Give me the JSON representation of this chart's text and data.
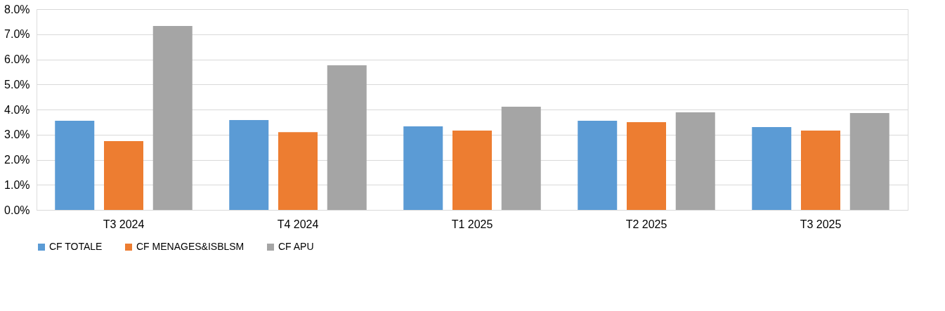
{
  "chart_data": {
    "type": "bar",
    "categories": [
      "T3 2024",
      "T4 2024",
      "T1 2025",
      "T2 2025",
      "T3 2025"
    ],
    "series": [
      {
        "name": "CF TOTALE",
        "color": "#5b9bd5",
        "values": [
          3.55,
          3.58,
          3.33,
          3.55,
          3.3
        ]
      },
      {
        "name": "CF MENAGES&ISBLSM",
        "color": "#ed7d31",
        "values": [
          2.74,
          3.1,
          3.16,
          3.5,
          3.16
        ]
      },
      {
        "name": "CF APU",
        "color": "#a5a5a5",
        "values": [
          7.33,
          5.76,
          4.11,
          3.89,
          3.86
        ]
      }
    ],
    "ylim": [
      0,
      8
    ],
    "yticks": [
      {
        "value": 0,
        "label": "0.0%"
      },
      {
        "value": 1,
        "label": "1.0%"
      },
      {
        "value": 2,
        "label": "2.0%"
      },
      {
        "value": 3,
        "label": "3.0%"
      },
      {
        "value": 4,
        "label": "4.0%"
      },
      {
        "value": 5,
        "label": "5.0%"
      },
      {
        "value": 6,
        "label": "6.0%"
      },
      {
        "value": 7,
        "label": "7.0%"
      },
      {
        "value": 8,
        "label": "8.0%"
      }
    ],
    "grid": "y",
    "legend": "bottom"
  }
}
